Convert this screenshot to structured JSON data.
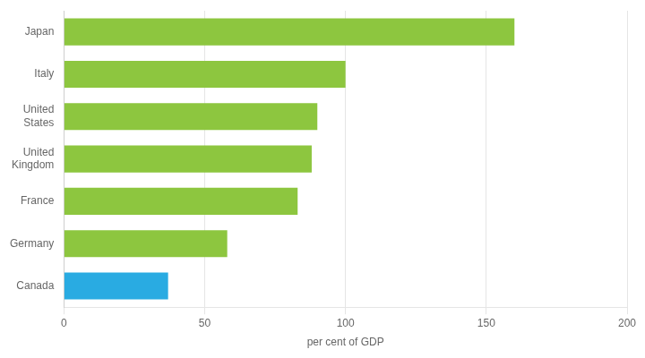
{
  "chart_data": {
    "type": "bar",
    "orientation": "horizontal",
    "categories": [
      "Japan",
      "Italy",
      "United\nStates",
      "United\nKingdom",
      "France",
      "Germany",
      "Canada"
    ],
    "values": [
      160,
      100,
      90,
      88,
      83,
      58,
      37
    ],
    "colors": [
      "#8dc63f",
      "#8dc63f",
      "#8dc63f",
      "#8dc63f",
      "#8dc63f",
      "#8dc63f",
      "#29abe2"
    ],
    "xlabel": "per cent of GDP",
    "xlim": [
      0,
      200
    ],
    "xticks": [
      0,
      50,
      100,
      150,
      200
    ],
    "grid": true
  }
}
